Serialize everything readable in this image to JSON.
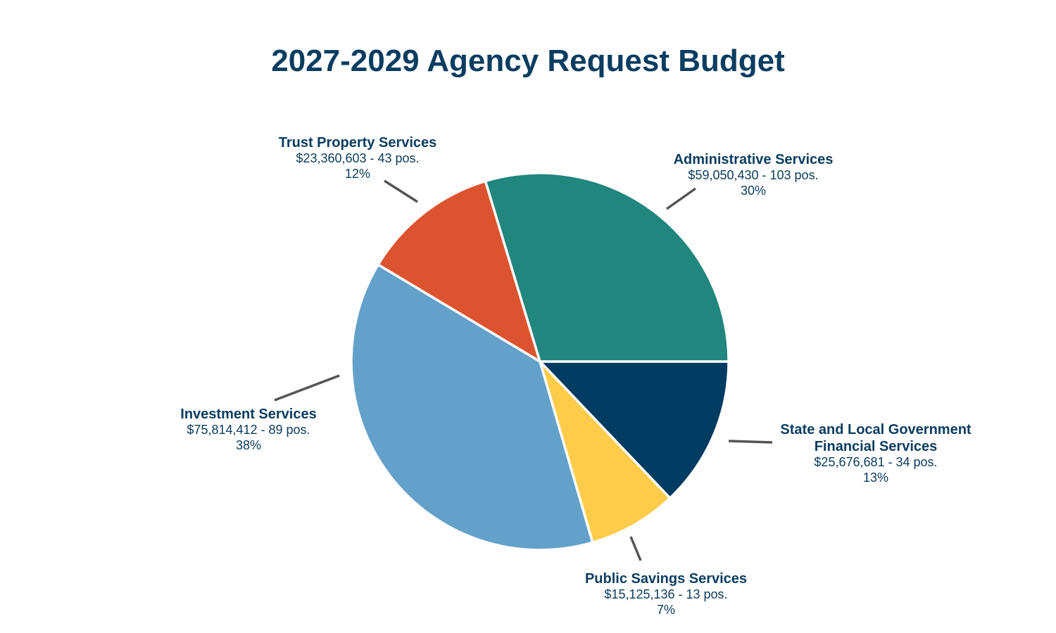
{
  "chart_data": {
    "type": "pie",
    "title": "2027-2029 Agency Request Budget",
    "slices": [
      {
        "name_lines": [
          "Administrative Services"
        ],
        "amount": 59050430,
        "amount_text": "$59,050,430 - 103 pos.",
        "positions": 103,
        "percent": 30,
        "percent_text": "30%",
        "color": "#21867d"
      },
      {
        "name_lines": [
          "State and Local Government",
          "Financial Services"
        ],
        "amount": 25676681,
        "amount_text": "$25,676,681 - 34 pos.",
        "positions": 34,
        "percent": 13,
        "percent_text": "13%",
        "color": "#003b62"
      },
      {
        "name_lines": [
          "Public Savings Services"
        ],
        "amount": 15125136,
        "amount_text": "$15,125,136 - 13 pos.",
        "positions": 13,
        "percent": 7,
        "percent_text": "7%",
        "color": "#fccc4a"
      },
      {
        "name_lines": [
          "Investment Services"
        ],
        "amount": 75814412,
        "amount_text": "$75,814,412 - 89 pos.",
        "positions": 89,
        "percent": 38,
        "percent_text": "38%",
        "color": "#63a1ca"
      },
      {
        "name_lines": [
          "Trust Property Services"
        ],
        "amount": 23360603,
        "amount_text": "$23,360,603 - 43 pos.",
        "positions": 43,
        "percent": 12,
        "percent_text": "12%",
        "color": "#dc542f"
      }
    ]
  }
}
